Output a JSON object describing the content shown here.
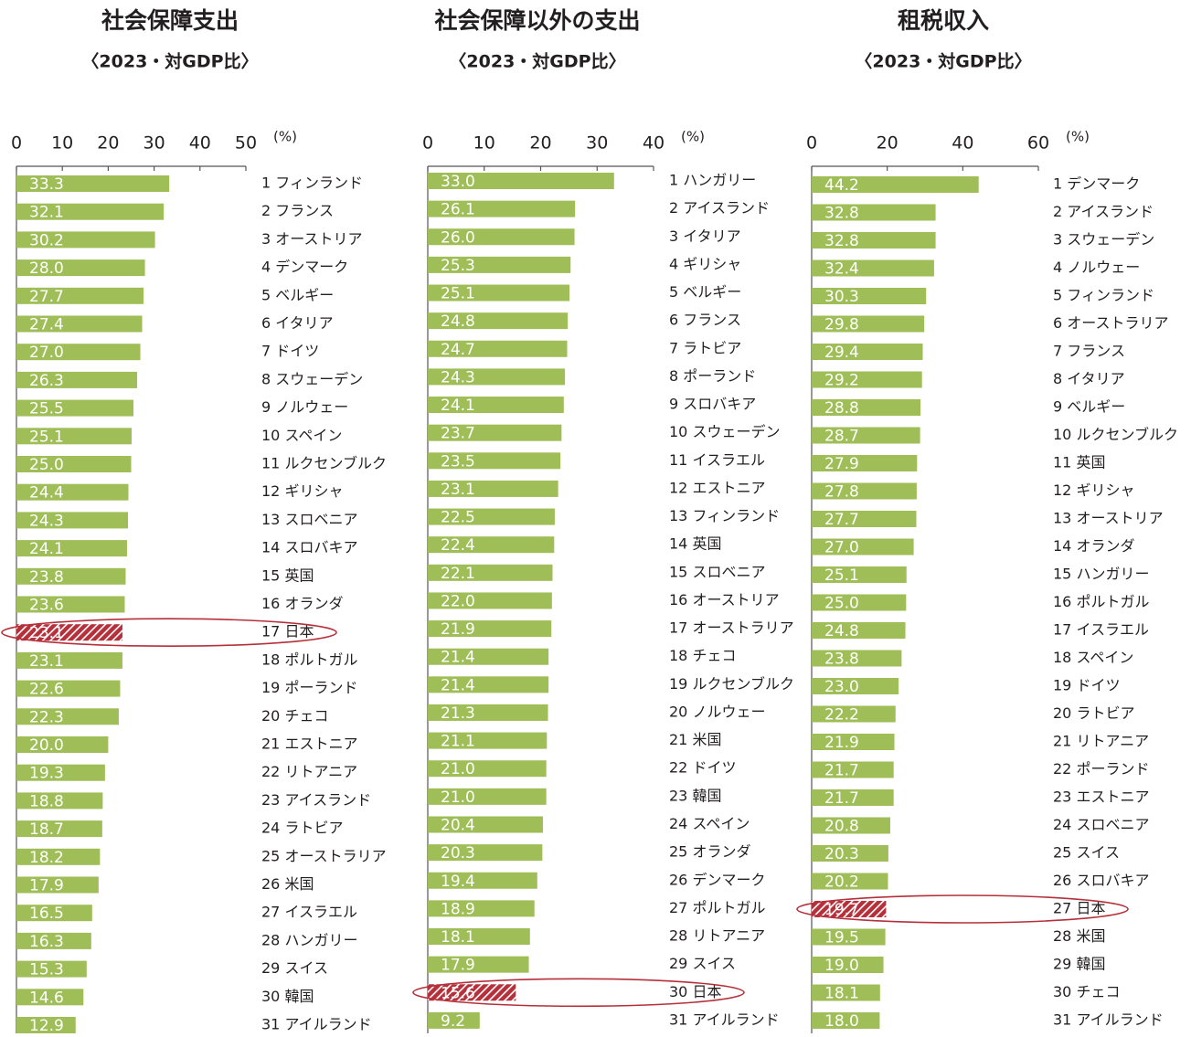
{
  "chart_data": [
    {
      "type": "barh",
      "title": "社会保障支出",
      "subtitle": "〈2023・対GDP比〉",
      "unit_label": "(%)",
      "xlim": [
        0,
        50
      ],
      "xticks": [
        0,
        10,
        20,
        30,
        40,
        50
      ],
      "color": "#9fbe57",
      "highlight_color": "#b5303a",
      "highlight_index": 16,
      "categories": [
        "1 フィンランド",
        "2 フランス",
        "3 オーストリア",
        "4 デンマーク",
        "5 ベルギー",
        "6 イタリア",
        "7 ドイツ",
        "8 スウェーデン",
        "9 ノルウェー",
        "10 スペイン",
        "11 ルクセンブルク",
        "12 ギリシャ",
        "13 スロベニア",
        "14 スロバキア",
        "15 英国",
        "16 オランダ",
        "17 日本",
        "18 ポルトガル",
        "19 ポーランド",
        "20 チェコ",
        "21 エストニア",
        "22 リトアニア",
        "23 アイスランド",
        "24 ラトビア",
        "25 オーストラリア",
        "26 米国",
        "27 イスラエル",
        "28 ハンガリー",
        "29 スイス",
        "30 韓国",
        "31 アイルランド"
      ],
      "values": [
        33.3,
        32.1,
        30.2,
        28.0,
        27.7,
        27.4,
        27.0,
        26.3,
        25.5,
        25.1,
        25.0,
        24.4,
        24.3,
        24.1,
        23.8,
        23.6,
        23.1,
        23.1,
        22.6,
        22.3,
        20.0,
        19.3,
        18.8,
        18.7,
        18.2,
        17.9,
        16.5,
        16.3,
        15.3,
        14.6,
        12.9
      ],
      "value_labels": [
        "33.3",
        "32.1",
        "30.2",
        "28.0",
        "27.7",
        "27.4",
        "27.0",
        "26.3",
        "25.5",
        "25.1",
        "25.0",
        "24.4",
        "24.3",
        "24.1",
        "23.8",
        "23.6",
        "23.1",
        "23.1",
        "22.6",
        "22.3",
        "20.0",
        "19.3",
        "18.8",
        "18.7",
        "18.2",
        "17.9",
        "16.5",
        "16.3",
        "15.3",
        "14.6",
        "12.9"
      ]
    },
    {
      "type": "barh",
      "title": "社会保障以外の支出",
      "subtitle": "〈2023・対GDP比〉",
      "unit_label": "(%)",
      "xlim": [
        0,
        40
      ],
      "xticks": [
        0,
        10,
        20,
        30,
        40
      ],
      "color": "#9fbe57",
      "highlight_color": "#b5303a",
      "highlight_index": 29,
      "categories": [
        "1 ハンガリー",
        "2 アイスランド",
        "3 イタリア",
        "4 ギリシャ",
        "5 ベルギー",
        "6 フランス",
        "7 ラトビア",
        "8 ポーランド",
        "9 スロバキア",
        "10 スウェーデン",
        "11 イスラエル",
        "12 エストニア",
        "13 フィンランド",
        "14 英国",
        "15 スロベニア",
        "16 オーストリア",
        "17 オーストラリア",
        "18 チェコ",
        "19 ルクセンブルク",
        "20 ノルウェー",
        "21 米国",
        "22 ドイツ",
        "23 韓国",
        "24 スペイン",
        "25 オランダ",
        "26 デンマーク",
        "27 ポルトガル",
        "28 リトアニア",
        "29 スイス",
        "30 日本",
        "31 アイルランド"
      ],
      "values": [
        33.0,
        26.1,
        26.0,
        25.3,
        25.1,
        24.8,
        24.7,
        24.3,
        24.1,
        23.7,
        23.5,
        23.1,
        22.5,
        22.4,
        22.1,
        22.0,
        21.9,
        21.4,
        21.4,
        21.3,
        21.1,
        21.0,
        21.0,
        20.4,
        20.3,
        19.4,
        18.9,
        18.1,
        17.9,
        15.6,
        9.2
      ],
      "value_labels": [
        "33.0",
        "26.1",
        "26.0",
        "25.3",
        "25.1",
        "24.8",
        "24.7",
        "24.3",
        "24.1",
        "23.7",
        "23.5",
        "23.1",
        "22.5",
        "22.4",
        "22.1",
        "22.0",
        "21.9",
        "21.4",
        "21.4",
        "21.3",
        "21.1",
        "21.0",
        "21.0",
        "20.4",
        "20.3",
        "19.4",
        "18.9",
        "18.1",
        "17.9",
        "15.6",
        "9.2"
      ]
    },
    {
      "type": "barh",
      "title": "租税収入",
      "subtitle": "〈2023・対GDP比〉",
      "unit_label": "(%)",
      "xlim": [
        0,
        60
      ],
      "xticks": [
        0,
        20,
        40,
        60
      ],
      "color": "#9fbe57",
      "highlight_color": "#b5303a",
      "highlight_index": 26,
      "categories": [
        "1 デンマーク",
        "2 アイスランド",
        "3 スウェーデン",
        "4 ノルウェー",
        "5 フィンランド",
        "6 オーストラリア",
        "7 フランス",
        "8 イタリア",
        "9 ベルギー",
        "10 ルクセンブルク",
        "11 英国",
        "12 ギリシャ",
        "13 オーストリア",
        "14 オランダ",
        "15 ハンガリー",
        "16 ポルトガル",
        "17 イスラエル",
        "18 スペイン",
        "19 ドイツ",
        "20 ラトビア",
        "21 リトアニア",
        "22 ポーランド",
        "23 エストニア",
        "24 スロベニア",
        "25 スイス",
        "26 スロバキア",
        "27 日本",
        "28 米国",
        "29 韓国",
        "30 チェコ",
        "31 アイルランド"
      ],
      "values": [
        44.2,
        32.8,
        32.8,
        32.4,
        30.3,
        29.8,
        29.4,
        29.2,
        28.8,
        28.7,
        27.9,
        27.8,
        27.7,
        27.0,
        25.1,
        25.0,
        24.8,
        23.8,
        23.0,
        22.2,
        21.9,
        21.7,
        21.7,
        20.8,
        20.3,
        20.2,
        19.7,
        19.5,
        19.0,
        18.1,
        18.0
      ],
      "value_labels": [
        "44.2",
        "32.8",
        "32.8",
        "32.4",
        "30.3",
        "29.8",
        "29.4",
        "29.2",
        "28.8",
        "28.7",
        "27.9",
        "27.8",
        "27.7",
        "27.0",
        "25.1",
        "25.0",
        "24.8",
        "23.8",
        "23.0",
        "22.2",
        "21.9",
        "21.7",
        "21.7",
        "20.8",
        "20.3",
        "20.2",
        "19.7",
        "19.5",
        "19.0",
        "18.1",
        "18.0"
      ]
    }
  ]
}
